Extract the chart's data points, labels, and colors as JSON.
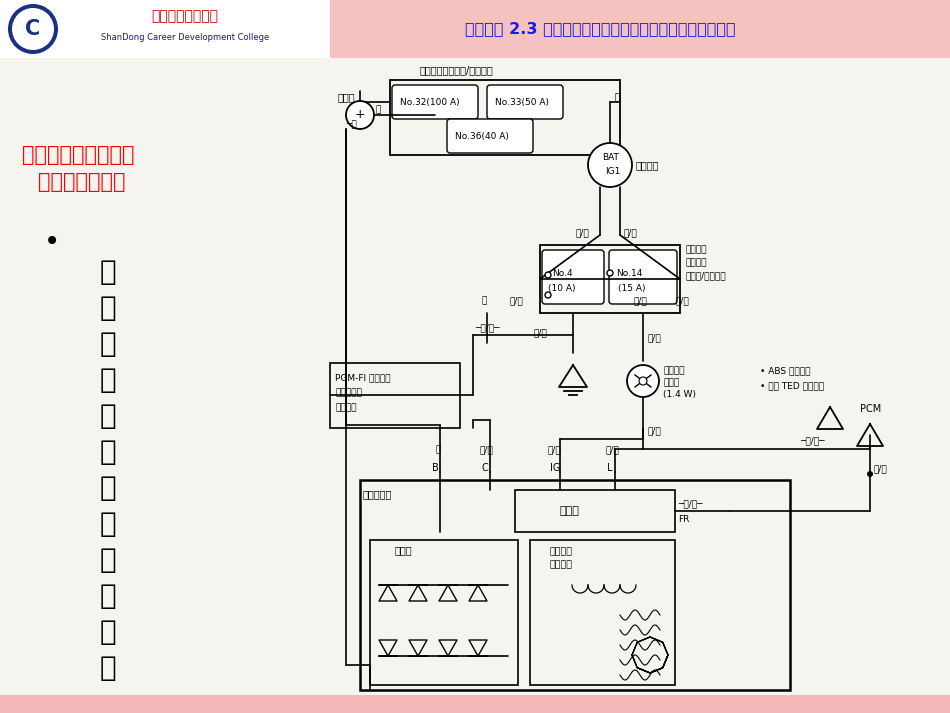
{
  "slide_bg": "#ede9e3",
  "header_left_bg": "#ffffff",
  "header_right_bg": "#f5c2c2",
  "header_text": "学习任务 2.3 发电机不发电或充电指示灯突然点亮故障检修",
  "header_text_color": "#1a1aee",
  "left_title_line1": "一、本田雅阁轿车电",
  "left_title_line2": "   源系统检修方法",
  "left_title_color": "#ff0000",
  "bullet_chars": [
    "以",
    "充",
    "电",
    "指",
    "示",
    "灯",
    "故",
    "障",
    "检",
    "测",
    "为",
    "例"
  ],
  "content_bg": "#f5f4ef",
  "bottom_bar_color": "#f5b8b8"
}
